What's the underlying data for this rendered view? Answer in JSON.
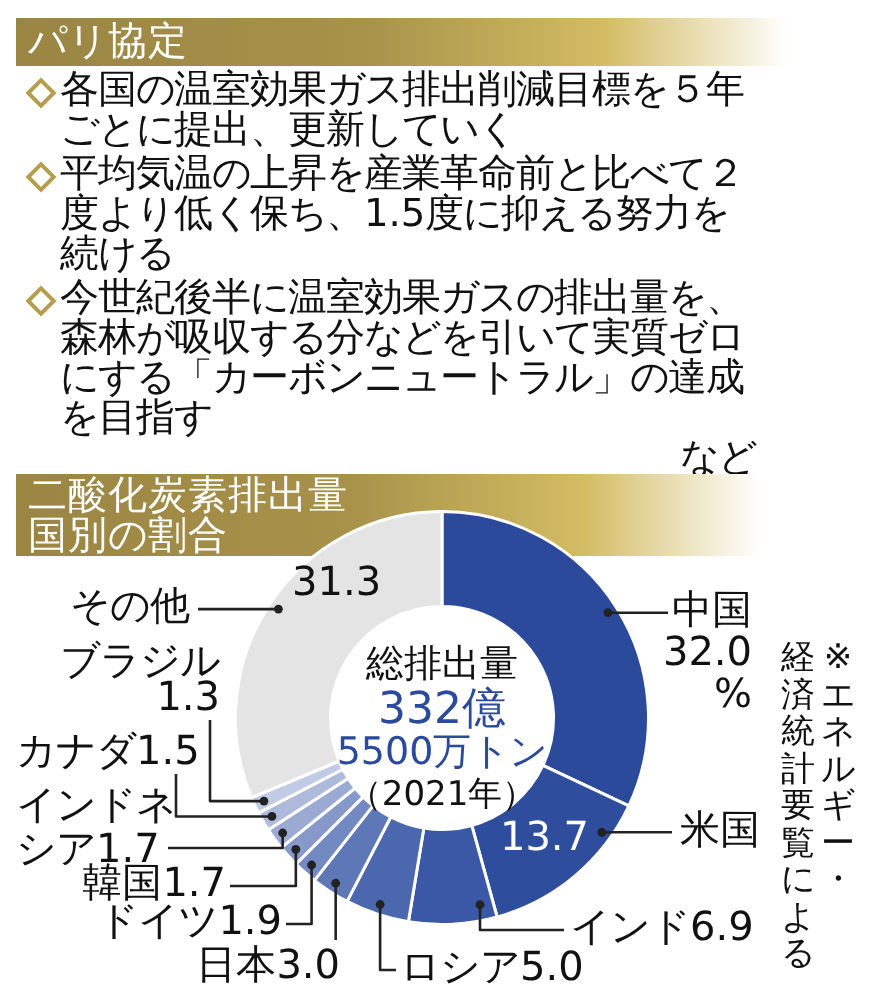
{
  "chart_data": [
    {
      "type": "other",
      "title": "パリ協定",
      "annotations": [
        "各国の温室効果ガス排出削減目標を５年ごとに提出、更新していく",
        "平均気温の上昇を産業革命前と比べて２度より低く保ち、1.5度に抑える努力を続ける",
        "今世紀後半に温室効果ガスの排出量を、森林が吸収する分などを引いて実質ゼロにする「カーボンニュートラル」の達成を目指す",
        "など"
      ]
    },
    {
      "type": "donut",
      "title": "二酸化炭素排出量国別の割合",
      "categories": [
        "中国",
        "米国",
        "インド",
        "ロシア",
        "日本",
        "ドイツ",
        "韓国",
        "インドネシア",
        "カナダ",
        "ブラジル",
        "その他"
      ],
      "values": [
        32.0,
        13.7,
        6.9,
        5.0,
        3.0,
        1.9,
        1.7,
        1.7,
        1.5,
        1.3,
        31.3
      ],
      "value_labels": [
        "32.0%",
        "13.7",
        "6.9",
        "5.0",
        "3.0",
        "1.9",
        "1.7",
        "1.7",
        "1.5",
        "1.3",
        "31.3"
      ],
      "colors": [
        "#2c4a9b",
        "#2f4d9d",
        "#3a58a5",
        "#4b67ae",
        "#5d77b7",
        "#7389c1",
        "#8799ca",
        "#9aaad3",
        "#adbadc",
        "#c1cbe5",
        "#e4e4e4"
      ],
      "annotations": [
        "総排出量",
        "332億",
        "5500万トン",
        "（2021年）",
        "※エネルギー・経済統計要覧による"
      ]
    }
  ]
}
